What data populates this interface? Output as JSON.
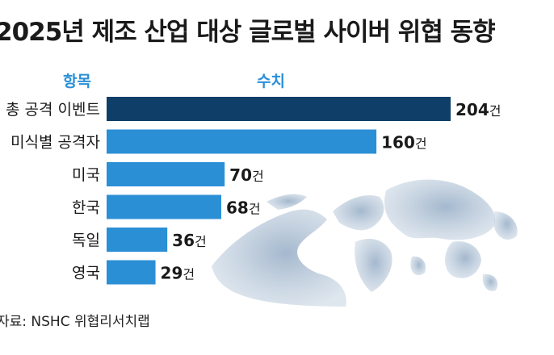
{
  "title": "2025년 제조 산업 대상 글로벌 사이버 위협 동향",
  "column_headers": {
    "item": "항목",
    "value": "수치"
  },
  "source": "자료: NSHC 위협리서치랩",
  "colors": {
    "highlight_bar": "#0f3e68",
    "bar": "#2b8fd6",
    "globe": "#aec0d4"
  },
  "chart_data": {
    "type": "bar",
    "orientation": "horizontal",
    "categories": [
      "총 공격 이벤트",
      "미식별 공격자",
      "미국",
      "한국",
      "독일",
      "영국"
    ],
    "values": [
      204,
      160,
      70,
      68,
      36,
      29
    ],
    "value_suffix": "건",
    "highlight_index": 0,
    "xlim": [
      0,
      204
    ],
    "grid": false,
    "legend": "none"
  }
}
